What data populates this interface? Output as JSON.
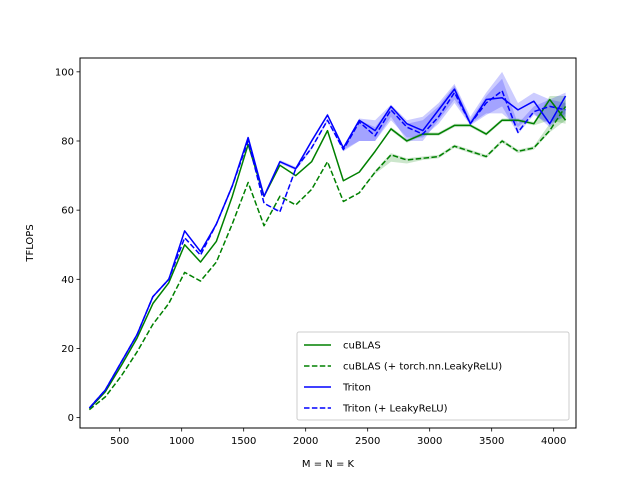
{
  "chart_data": {
    "type": "line",
    "title": "",
    "xlabel": "M = N = K",
    "ylabel": "TFLOPS",
    "xlim": [
      180,
      4180
    ],
    "ylim": [
      -3,
      104
    ],
    "xticks": [
      500,
      1000,
      1500,
      2000,
      2500,
      3000,
      3500,
      4000
    ],
    "yticks": [
      0,
      20,
      40,
      60,
      80,
      100
    ],
    "grid": false,
    "legend_position": "lower-right",
    "x": [
      256,
      384,
      512,
      640,
      768,
      896,
      1024,
      1152,
      1280,
      1408,
      1536,
      1664,
      1792,
      1920,
      2048,
      2176,
      2304,
      2432,
      2560,
      2688,
      2816,
      2944,
      3072,
      3200,
      3328,
      3456,
      3584,
      3712,
      3840,
      3968,
      4096
    ],
    "series": [
      {
        "name": "cuBLAS",
        "color": "#008000",
        "dash": "solid",
        "values": [
          2.6,
          7.5,
          15,
          23,
          33,
          39,
          50,
          45,
          51,
          64,
          79,
          64,
          73,
          70,
          74,
          83,
          68.5,
          71,
          77,
          83.5,
          80,
          82,
          82,
          84.5,
          84.5,
          82,
          86,
          86,
          85,
          92,
          86
        ],
        "band_low": [
          2.6,
          7.5,
          15,
          23,
          33,
          39,
          50,
          45,
          51,
          64,
          79,
          64,
          73,
          70,
          74,
          83,
          68.5,
          71,
          77,
          83,
          79.5,
          81.5,
          81.5,
          84,
          84,
          81.5,
          85.5,
          85.5,
          84.5,
          86,
          85
        ],
        "band_high": [
          2.6,
          7.5,
          15,
          23,
          33,
          39,
          50,
          45,
          51,
          64,
          79,
          64,
          73,
          70,
          74,
          83,
          68.5,
          71,
          77,
          84,
          80.5,
          82.5,
          82.5,
          85,
          85,
          82.5,
          86.5,
          86.5,
          85.5,
          93,
          93
        ]
      },
      {
        "name": "cuBLAS (+ torch.nn.LeakyReLU)",
        "color": "#008000",
        "dash": "dashed",
        "values": [
          2.3,
          6,
          12,
          19,
          27,
          33,
          42,
          39.5,
          45,
          56,
          68,
          55.5,
          64,
          61.5,
          66,
          74,
          62.5,
          65,
          71,
          76,
          74.5,
          75,
          75.5,
          78.5,
          77,
          75.5,
          80,
          77,
          78,
          83,
          90
        ],
        "band_low": [
          2.3,
          6,
          12,
          19,
          27,
          33,
          42,
          39.5,
          45,
          56,
          68,
          55.5,
          64,
          61.5,
          66,
          74,
          62.5,
          65,
          70.5,
          74,
          73.5,
          74.5,
          75,
          78,
          76.5,
          75,
          79.5,
          76.5,
          77.5,
          82.5,
          86
        ],
        "band_high": [
          2.3,
          6,
          12,
          19,
          27,
          33,
          42,
          39.5,
          45,
          56,
          68,
          55.5,
          64,
          61.5,
          66,
          74,
          62.5,
          65,
          71.5,
          76.5,
          75,
          75.5,
          76,
          79,
          77.5,
          76,
          80.5,
          77.5,
          78.5,
          85,
          92
        ]
      },
      {
        "name": "Triton",
        "color": "#0000ff",
        "dash": "solid",
        "values": [
          2.8,
          8,
          16,
          24,
          35,
          40,
          54,
          48,
          56,
          67,
          81,
          64,
          74,
          72,
          80,
          87.5,
          78,
          86,
          83,
          90,
          85,
          83,
          89,
          95,
          85,
          92,
          92.5,
          89,
          91.5,
          85,
          93
        ],
        "band_low": [
          2.8,
          8,
          16,
          24,
          35,
          40,
          54,
          48,
          56,
          67,
          81,
          64,
          73.5,
          71.5,
          79.5,
          87,
          77.5,
          80,
          80,
          87,
          80,
          80,
          86,
          92,
          85,
          88,
          88,
          84,
          88,
          84,
          88
        ],
        "band_high": [
          2.8,
          8,
          16,
          24,
          35,
          40,
          54,
          48,
          56,
          67,
          81,
          64,
          74.5,
          72.5,
          80.5,
          88,
          78.5,
          86.5,
          86,
          90.5,
          86,
          87,
          91,
          96.5,
          87,
          94,
          100,
          91,
          94,
          92,
          94
        ]
      },
      {
        "name": "Triton (+ LeakyReLU)",
        "color": "#0000ff",
        "dash": "dashed",
        "values": [
          2.8,
          8,
          16,
          24,
          35,
          40,
          52,
          47,
          56,
          67,
          80,
          62,
          59.5,
          72,
          78,
          86,
          77.5,
          85.5,
          81.5,
          89,
          84,
          82,
          87,
          94,
          85,
          91,
          94.5,
          82.5,
          88.5,
          90,
          89
        ],
        "band_low": [
          2.8,
          8,
          16,
          24,
          35,
          40,
          52,
          47,
          56,
          67,
          80,
          62,
          59.5,
          71.5,
          77.5,
          85.5,
          77,
          80,
          80,
          86,
          81,
          81,
          85,
          91,
          84.5,
          87.5,
          90,
          82,
          87.5,
          85,
          87
        ],
        "band_high": [
          2.8,
          8,
          16,
          24,
          35,
          40,
          52,
          47,
          56,
          67,
          80,
          62,
          60,
          72.5,
          78.5,
          86.5,
          78,
          86,
          84,
          90,
          85,
          86,
          90,
          96,
          86,
          93,
          98,
          85,
          90,
          92,
          91
        ]
      }
    ]
  }
}
